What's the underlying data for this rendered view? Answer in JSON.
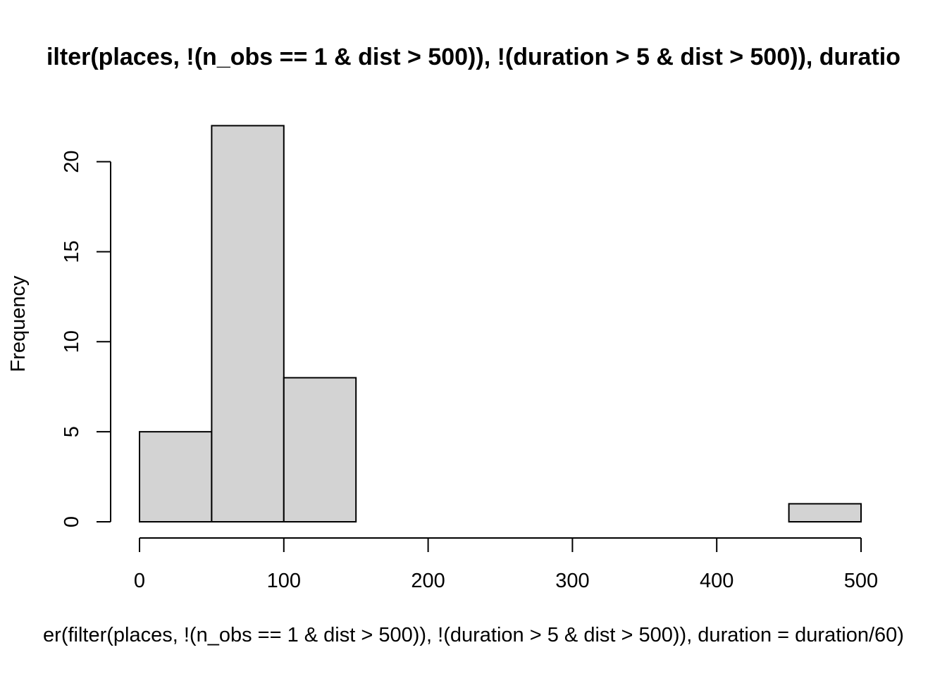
{
  "chart_data": {
    "type": "bar",
    "title": "ilter(places, !(n_obs == 1 & dist > 500)), !(duration > 5 & dist > 500)), duratio",
    "xlabel": "er(filter(places, !(n_obs == 1 & dist > 500)), !(duration > 5 & dist > 500)), duration = duration/60)",
    "ylabel": "Frequency",
    "bins": [
      {
        "start": 0,
        "end": 50,
        "count": 5
      },
      {
        "start": 50,
        "end": 100,
        "count": 22
      },
      {
        "start": 100,
        "end": 150,
        "count": 8
      },
      {
        "start": 150,
        "end": 200,
        "count": 0
      },
      {
        "start": 200,
        "end": 250,
        "count": 0
      },
      {
        "start": 250,
        "end": 300,
        "count": 0
      },
      {
        "start": 300,
        "end": 350,
        "count": 0
      },
      {
        "start": 350,
        "end": 400,
        "count": 0
      },
      {
        "start": 400,
        "end": 450,
        "count": 0
      },
      {
        "start": 450,
        "end": 500,
        "count": 1
      }
    ],
    "xlim": [
      0,
      500
    ],
    "ylim": [
      0,
      22
    ],
    "xticks": [
      0,
      100,
      200,
      300,
      400,
      500
    ],
    "yticks": [
      0,
      5,
      10,
      15,
      20
    ],
    "bar_color": "#d3d3d3",
    "grid": false
  }
}
